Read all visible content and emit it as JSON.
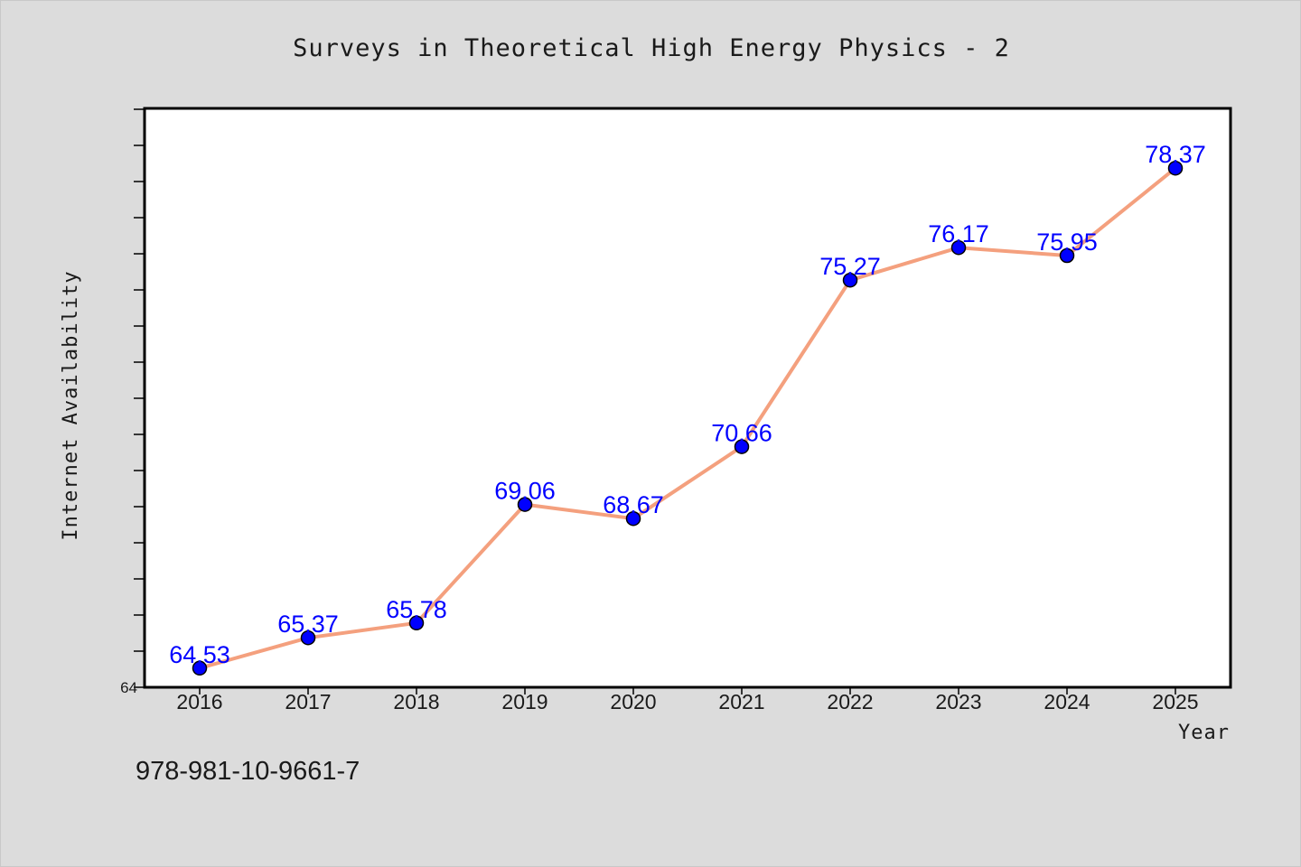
{
  "colors": {
    "background": "#dcdcdc",
    "plot_background": "#ffffff",
    "line": "#f4a07e",
    "marker": "#0000ff",
    "data_label": "#0000ff",
    "text": "#1a1a1a"
  },
  "footer": {
    "isbn": "978-981-10-9661-7"
  },
  "chart_data": {
    "type": "line",
    "title": "Surveys in Theoretical High Energy Physics - 2",
    "xlabel": "Year",
    "ylabel": "Internet Availability",
    "categories": [
      "2016",
      "2017",
      "2018",
      "2019",
      "2020",
      "2021",
      "2022",
      "2023",
      "2024",
      "2025"
    ],
    "series": [
      {
        "values": [
          64.53,
          65.37,
          65.78,
          69.06,
          68.67,
          70.66,
          75.27,
          76.17,
          75.95,
          78.37
        ],
        "labels": [
          "64.53",
          "65.37",
          "65.78",
          "69.06",
          "68.67",
          "70.66",
          "75.27",
          "76.17",
          "75.95",
          "78.37"
        ]
      }
    ],
    "ylim": [
      64,
      80
    ],
    "ytick_labels": [
      "64"
    ],
    "grid": false,
    "legend": "none"
  }
}
